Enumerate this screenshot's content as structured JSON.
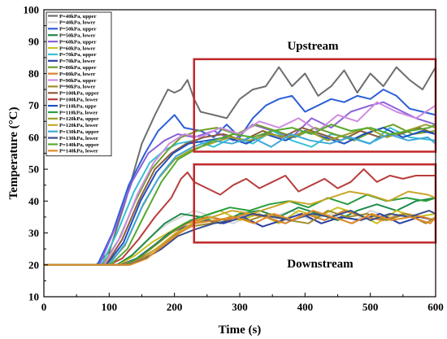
{
  "chart_data": {
    "type": "line",
    "xlabel": "Time (s)",
    "ylabel": "Temperature (°C)",
    "xlim": [
      0,
      600
    ],
    "ylim": [
      10,
      100
    ],
    "xticks": [
      0,
      100,
      200,
      300,
      400,
      500,
      600
    ],
    "yticks": [
      10,
      20,
      30,
      40,
      50,
      60,
      70,
      80,
      90,
      100
    ],
    "legend_position": "top-left",
    "annotations": [
      {
        "text": "Upstream",
        "box_color": "#c0282b"
      },
      {
        "text": "Downstream",
        "box_color": "#c0282b"
      }
    ],
    "regions": [
      {
        "label": "Upstream",
        "x": [
          230,
          600
        ],
        "y": [
          55.5,
          84.5
        ]
      },
      {
        "label": "Downstream",
        "x": [
          230,
          600
        ],
        "y": [
          27,
          51.5
        ]
      }
    ],
    "series": [
      {
        "name": "P=40kPa,  upper",
        "color": "#6e6e6e",
        "x": [
          0,
          80,
          100,
          125,
          150,
          170,
          190,
          200,
          210,
          220,
          230,
          240,
          260,
          280,
          300,
          320,
          340,
          360,
          380,
          400,
          420,
          440,
          460,
          480,
          500,
          520,
          540,
          560,
          580,
          600
        ],
        "values": [
          20,
          20,
          24,
          40,
          58,
          67,
          75,
          74,
          75,
          78,
          72,
          68,
          67,
          66,
          72,
          75,
          76,
          82,
          76,
          80,
          73,
          76,
          81,
          74,
          80,
          76,
          82,
          78,
          75,
          82
        ]
      },
      {
        "name": "P=40kPa,  lower",
        "color": "#d4d4d4",
        "x": [
          0,
          110,
          130,
          150,
          170,
          190,
          210,
          230,
          260,
          290,
          320,
          350,
          380,
          410,
          440,
          470,
          500,
          530,
          560,
          600
        ],
        "values": [
          20,
          20,
          22,
          26,
          30,
          33,
          35,
          37,
          35,
          33,
          36,
          35,
          37,
          34,
          36,
          33,
          37,
          35,
          36,
          34
        ]
      },
      {
        "name": "P=50kPa,  upper",
        "color": "#2c5fd8",
        "x": [
          0,
          82,
          105,
          130,
          155,
          175,
          190,
          200,
          215,
          240,
          260,
          280,
          300,
          320,
          340,
          360,
          380,
          400,
          420,
          440,
          460,
          480,
          500,
          520,
          540,
          560,
          580,
          600
        ],
        "values": [
          20,
          20,
          30,
          45,
          55,
          62,
          65,
          67,
          63,
          62,
          60,
          64,
          60,
          66,
          70,
          72,
          73,
          68,
          70,
          72,
          71,
          73,
          72,
          75,
          73,
          69,
          68,
          67
        ]
      },
      {
        "name": "P=50kPa,  lower",
        "color": "#1f8b4c",
        "x": [
          0,
          112,
          135,
          160,
          185,
          210,
          240,
          270,
          300,
          330,
          360,
          390,
          420,
          450,
          480,
          510,
          540,
          570,
          600
        ],
        "values": [
          20,
          20,
          23,
          28,
          33,
          36,
          35,
          33,
          36,
          37,
          35,
          38,
          36,
          34,
          37,
          39,
          37,
          40,
          41
        ]
      },
      {
        "name": "P=60kPa,  upper",
        "color": "#8b62d9",
        "x": [
          0,
          85,
          110,
          135,
          160,
          185,
          205,
          230,
          260,
          290,
          320,
          350,
          380,
          410,
          440,
          470,
          500,
          520,
          540,
          570,
          600
        ],
        "values": [
          20,
          20,
          32,
          46,
          55,
          59,
          61,
          60,
          62,
          59,
          64,
          62,
          60,
          66,
          63,
          68,
          70,
          71,
          69,
          66,
          64
        ]
      },
      {
        "name": "P=60kPa,  lower",
        "color": "#c9c220",
        "x": [
          0,
          115,
          140,
          165,
          190,
          215,
          240,
          270,
          300,
          330,
          360,
          390,
          420,
          450,
          480,
          510,
          540,
          570,
          600
        ],
        "values": [
          20,
          20,
          23,
          27,
          30,
          33,
          35,
          37,
          34,
          36,
          33,
          37,
          35,
          38,
          36,
          33,
          37,
          35,
          36
        ]
      },
      {
        "name": "P=70kPa,  upper",
        "color": "#35c0d6",
        "x": [
          0,
          88,
          112,
          138,
          162,
          185,
          205,
          230,
          260,
          290,
          320,
          350,
          380,
          410,
          440,
          470,
          500,
          530,
          560,
          600
        ],
        "values": [
          20,
          20,
          30,
          43,
          52,
          56,
          58,
          59,
          57,
          60,
          58,
          62,
          59,
          57,
          61,
          60,
          58,
          63,
          60,
          59
        ]
      },
      {
        "name": "P=70kPa,  lower",
        "color": "#2a3fa3",
        "x": [
          0,
          118,
          142,
          168,
          192,
          218,
          245,
          275,
          305,
          335,
          365,
          395,
          425,
          455,
          485,
          515,
          545,
          575,
          600
        ],
        "values": [
          20,
          20,
          22,
          26,
          30,
          32,
          34,
          33,
          35,
          32,
          34,
          36,
          33,
          35,
          34,
          36,
          33,
          35,
          34
        ]
      },
      {
        "name": "P=80kPa,  upper",
        "color": "#6d9f2a",
        "x": [
          0,
          90,
          115,
          140,
          165,
          190,
          210,
          235,
          265,
          295,
          325,
          355,
          385,
          415,
          445,
          475,
          505,
          535,
          565,
          600
        ],
        "values": [
          20,
          20,
          28,
          40,
          50,
          56,
          60,
          62,
          63,
          61,
          64,
          62,
          60,
          63,
          61,
          59,
          62,
          64,
          61,
          62
        ]
      },
      {
        "name": "P=80kPa,  lower",
        "color": "#d97f2a",
        "x": [
          0,
          120,
          145,
          170,
          195,
          220,
          250,
          280,
          310,
          340,
          370,
          400,
          430,
          460,
          490,
          520,
          550,
          580,
          600
        ],
        "values": [
          20,
          20,
          22,
          26,
          30,
          33,
          35,
          34,
          36,
          35,
          33,
          36,
          34,
          37,
          35,
          34,
          36,
          35,
          34
        ]
      },
      {
        "name": "P=90kPa,  upper",
        "color": "#cf8be0",
        "x": [
          0,
          92,
          118,
          143,
          168,
          192,
          215,
          240,
          270,
          300,
          330,
          360,
          390,
          420,
          450,
          480,
          510,
          540,
          570,
          600
        ],
        "values": [
          20,
          20,
          29,
          42,
          52,
          58,
          61,
          60,
          63,
          61,
          65,
          63,
          66,
          62,
          67,
          65,
          71,
          68,
          66,
          70
        ]
      },
      {
        "name": "P=90kPa,  lower",
        "color": "#a08b2a",
        "x": [
          0,
          122,
          148,
          172,
          198,
          225,
          255,
          285,
          315,
          345,
          375,
          405,
          435,
          465,
          495,
          525,
          555,
          585,
          600
        ],
        "values": [
          20,
          20,
          22,
          25,
          29,
          32,
          33,
          35,
          34,
          36,
          34,
          33,
          37,
          35,
          36,
          34,
          36,
          33,
          35
        ]
      },
      {
        "name": "P=100kPa,  upper",
        "color": "#8e5a3a",
        "x": [
          0,
          95,
          120,
          145,
          170,
          195,
          218,
          245,
          275,
          305,
          335,
          365,
          395,
          425,
          455,
          485,
          515,
          545,
          575,
          600
        ],
        "values": [
          20,
          20,
          28,
          40,
          50,
          55,
          58,
          60,
          61,
          59,
          62,
          60,
          63,
          61,
          59,
          62,
          60,
          61,
          63,
          61
        ]
      },
      {
        "name": "P=100kPa,  lower",
        "color": "#b83c3c",
        "x": [
          0,
          100,
          120,
          145,
          170,
          195,
          210,
          220,
          230,
          250,
          270,
          290,
          310,
          330,
          350,
          370,
          390,
          410,
          430,
          450,
          470,
          490,
          510,
          530,
          550,
          570,
          600
        ],
        "values": [
          20,
          20,
          22,
          28,
          35,
          41,
          47,
          49,
          46,
          44,
          42,
          45,
          47,
          44,
          46,
          48,
          43,
          45,
          47,
          44,
          46,
          50,
          46,
          48,
          47,
          48,
          48
        ]
      },
      {
        "name": "P=110kPa,  uppe",
        "color": "#1e4fbf",
        "x": [
          0,
          96,
          122,
          148,
          172,
          198,
          222,
          250,
          280,
          310,
          340,
          370,
          400,
          430,
          460,
          490,
          520,
          550,
          580,
          600
        ],
        "values": [
          20,
          20,
          27,
          40,
          49,
          55,
          58,
          59,
          60,
          58,
          61,
          59,
          62,
          60,
          58,
          61,
          63,
          60,
          62,
          61
        ]
      },
      {
        "name": "P=110kPa,  lower",
        "color": "#2a9d3e",
        "x": [
          0,
          125,
          150,
          175,
          200,
          225,
          255,
          285,
          315,
          345,
          375,
          405,
          435,
          465,
          495,
          525,
          555,
          585,
          600
        ],
        "values": [
          20,
          20,
          23,
          27,
          31,
          34,
          36,
          38,
          37,
          39,
          40,
          38,
          41,
          39,
          42,
          40,
          41,
          40,
          41
        ]
      },
      {
        "name": "P=120kPa,  upper",
        "color": "#9aa12a",
        "x": [
          0,
          98,
          124,
          150,
          175,
          200,
          225,
          255,
          285,
          315,
          345,
          375,
          405,
          435,
          465,
          495,
          525,
          555,
          585,
          600
        ],
        "values": [
          20,
          20,
          26,
          38,
          47,
          53,
          56,
          58,
          60,
          59,
          61,
          60,
          62,
          59,
          61,
          63,
          60,
          62,
          64,
          63
        ]
      },
      {
        "name": "P=120kPa,  lower",
        "color": "#c9a72a",
        "x": [
          0,
          128,
          152,
          178,
          202,
          228,
          258,
          288,
          318,
          348,
          378,
          408,
          438,
          468,
          498,
          528,
          558,
          588,
          600
        ],
        "values": [
          20,
          20,
          22,
          26,
          30,
          33,
          35,
          37,
          36,
          38,
          40,
          39,
          41,
          43,
          42,
          40,
          43,
          42,
          41
        ]
      },
      {
        "name": "P=130kPa,  upper",
        "color": "#3fa8d9",
        "x": [
          0,
          100,
          126,
          152,
          178,
          202,
          228,
          258,
          288,
          318,
          348,
          378,
          408,
          438,
          468,
          498,
          528,
          558,
          588,
          600
        ],
        "values": [
          20,
          20,
          27,
          39,
          48,
          54,
          57,
          59,
          58,
          60,
          57,
          61,
          59,
          58,
          60,
          58,
          61,
          59,
          60,
          58
        ]
      },
      {
        "name": "P=130kPa,  lower",
        "color": "#3a4d8c",
        "x": [
          0,
          130,
          155,
          180,
          205,
          230,
          260,
          290,
          320,
          350,
          380,
          410,
          440,
          470,
          500,
          530,
          560,
          590,
          600
        ],
        "values": [
          20,
          20,
          22,
          25,
          29,
          31,
          33,
          34,
          36,
          35,
          34,
          36,
          35,
          37,
          34,
          36,
          35,
          37,
          36
        ]
      },
      {
        "name": "P=140kPa,  upper",
        "color": "#56a92e",
        "x": [
          0,
          102,
          128,
          155,
          180,
          205,
          230,
          260,
          290,
          320,
          350,
          380,
          410,
          440,
          470,
          500,
          530,
          560,
          590,
          600
        ],
        "values": [
          20,
          20,
          25,
          36,
          46,
          53,
          56,
          59,
          61,
          60,
          62,
          63,
          61,
          64,
          62,
          63,
          61,
          62,
          63,
          64
        ]
      },
      {
        "name": "P=140kPa,  lower",
        "color": "#e08a2a",
        "x": [
          0,
          132,
          158,
          182,
          208,
          232,
          262,
          292,
          322,
          352,
          382,
          412,
          442,
          472,
          502,
          532,
          562,
          592,
          600
        ],
        "values": [
          20,
          20,
          22,
          26,
          30,
          33,
          34,
          35,
          33,
          36,
          34,
          37,
          35,
          33,
          36,
          34,
          35,
          33,
          35
        ]
      }
    ]
  }
}
